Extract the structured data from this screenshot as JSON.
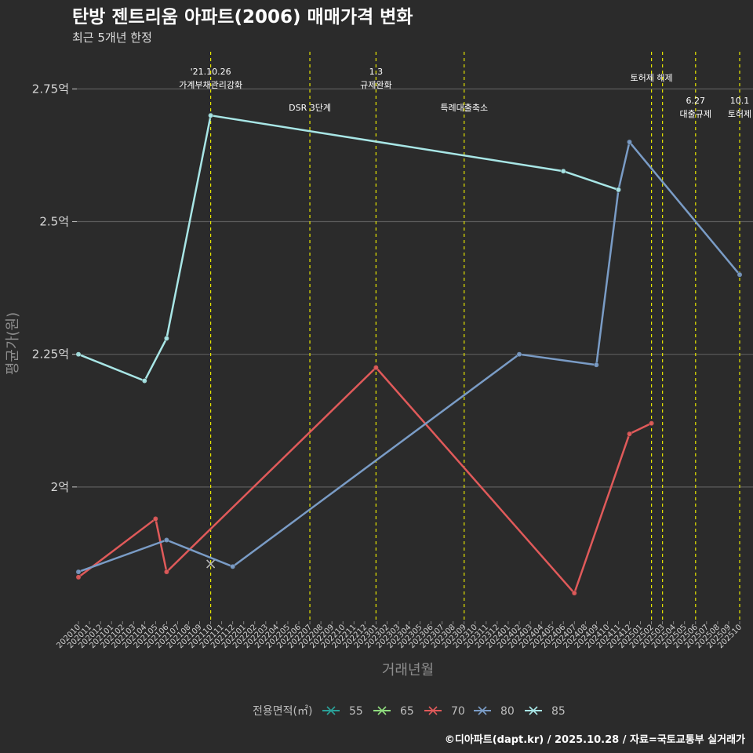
{
  "chart_data": {
    "type": "line",
    "title": "탄방 젠트리움 아파트(2006) 매매가격 변화",
    "subtitle": "최근 5개년 한정",
    "xlabel": "거래년월",
    "ylabel": "평균가(원)",
    "caption": "©디아파트(dapt.kr) / 2025.10.28 / 자료=국토교통부 실거래가",
    "legend_title": "전용면적(㎡)",
    "ylim": [
      1.75,
      2.82
    ],
    "yticks": [
      {
        "value": 2.0,
        "label": "2억"
      },
      {
        "value": 2.25,
        "label": "2.25억"
      },
      {
        "value": 2.5,
        "label": "2.5억"
      },
      {
        "value": 2.75,
        "label": "2.75억"
      }
    ],
    "categories": [
      "202010",
      "202011",
      "202012",
      "202101",
      "202102",
      "202103",
      "202104",
      "202105",
      "202106",
      "202107",
      "202108",
      "202109",
      "202110",
      "202111",
      "202112",
      "202201",
      "202202",
      "202203",
      "202204",
      "202205",
      "202206",
      "202207",
      "202208",
      "202209",
      "202210",
      "202211",
      "202212",
      "202301",
      "202302",
      "202303",
      "202304",
      "202305",
      "202306",
      "202307",
      "202308",
      "202309",
      "202310",
      "202311",
      "202312",
      "202401",
      "202402",
      "202403",
      "202404",
      "202405",
      "202406",
      "202407",
      "202408",
      "202409",
      "202410",
      "202411",
      "202412",
      "202501",
      "202502",
      "202503",
      "202504",
      "202505",
      "202506",
      "202507",
      "202508",
      "202509",
      "202510"
    ],
    "xtick_labels": [
      "202010",
      "202011",
      "202012",
      "202101",
      "202102",
      "202103",
      "202104",
      "202105",
      "202106",
      "202107",
      "202108",
      "202109",
      "202110",
      "202111",
      "202112",
      "202201",
      "202202",
      "202203",
      "202204",
      "202205",
      "202206",
      "202207",
      "202208",
      "202209",
      "202210",
      "202211",
      "202212",
      "202301",
      "202302",
      "202303",
      "202304",
      "202305",
      "202306",
      "202307",
      "202308",
      "202309",
      "202310",
      "202311",
      "202312",
      "202401",
      "202402",
      "202403",
      "202404",
      "202405",
      "202406",
      "202407",
      "202408",
      "202409",
      "202410",
      "202411",
      "202412",
      "202501",
      "202502",
      "202503",
      "202504",
      "202505",
      "202506",
      "202507",
      "202508",
      "202509",
      "202510"
    ],
    "series": [
      {
        "name": "55",
        "color": "#2aa198",
        "points": []
      },
      {
        "name": "65",
        "color": "#8fdc7e",
        "points": [
          {
            "x": "202110",
            "y": 1.855,
            "marker": "x"
          }
        ]
      },
      {
        "name": "70",
        "color": "#e05a5a",
        "points": [
          {
            "x": "202010",
            "y": 1.83
          },
          {
            "x": "202105",
            "y": 1.94
          },
          {
            "x": "202106",
            "y": 1.84
          },
          {
            "x": "202301",
            "y": 2.225
          },
          {
            "x": "202407",
            "y": 1.8
          },
          {
            "x": "202412",
            "y": 2.1
          },
          {
            "x": "202502",
            "y": 2.12
          }
        ]
      },
      {
        "name": "80",
        "color": "#7a9cc6",
        "points": [
          {
            "x": "202010",
            "y": 1.84
          },
          {
            "x": "202106",
            "y": 1.9
          },
          {
            "x": "202112",
            "y": 1.85
          },
          {
            "x": "202402",
            "y": 2.25
          },
          {
            "x": "202409",
            "y": 2.23
          },
          {
            "x": "202411",
            "y": 2.56
          },
          {
            "x": "202412",
            "y": 2.65
          },
          {
            "x": "202510",
            "y": 2.4
          }
        ]
      },
      {
        "name": "85",
        "color": "#a8e6e6",
        "points": [
          {
            "x": "202010",
            "y": 2.25
          },
          {
            "x": "202104",
            "y": 2.2
          },
          {
            "x": "202106",
            "y": 2.28
          },
          {
            "x": "202110",
            "y": 2.7
          },
          {
            "x": "202406",
            "y": 2.595
          },
          {
            "x": "202411",
            "y": 2.56
          }
        ]
      }
    ],
    "vlines": [
      {
        "x": "202110",
        "color": "#e6e600",
        "label": [
          "'21.10.26",
          "가계부채관리강화"
        ],
        "level": "top"
      },
      {
        "x": "202207",
        "color": "#e6e600",
        "label": [
          "DSR 3단계"
        ],
        "level": "mid"
      },
      {
        "x": "202301",
        "color": "#e6e600",
        "label": [
          "1.3",
          "규제완화"
        ],
        "level": "top"
      },
      {
        "x": "202309",
        "color": "#e6e600",
        "label": [
          "특례대출축소"
        ],
        "level": "mid"
      },
      {
        "x": "202502",
        "color": "#e6e600",
        "label": [
          "토허제 해제"
        ],
        "level": "top2"
      },
      {
        "x": "202503",
        "color": "#e6e600",
        "label": [],
        "level": "none"
      },
      {
        "x": "202506",
        "color": "#e6e600",
        "label": [
          "6.27",
          "대출규제"
        ],
        "level": "low"
      },
      {
        "x": "202510",
        "color": "#e6e600",
        "label": [
          "10.1",
          "토허제"
        ],
        "level": "low"
      }
    ]
  }
}
